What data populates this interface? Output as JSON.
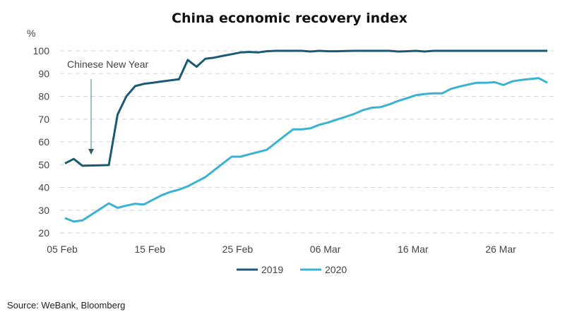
{
  "chart_data": {
    "type": "line",
    "title": "China economic recovery index",
    "ylabel": "%",
    "xlabel": "",
    "ylim": [
      20,
      100
    ],
    "yticks": [
      20,
      30,
      40,
      50,
      60,
      70,
      80,
      90,
      100
    ],
    "x_unit": "days since 05 Feb",
    "x_start_label": "05 Feb",
    "xlim": [
      0,
      55
    ],
    "xticks": [
      {
        "day": 0,
        "label": "05 Feb"
      },
      {
        "day": 10,
        "label": "15 Feb"
      },
      {
        "day": 20,
        "label": "25 Feb"
      },
      {
        "day": 30,
        "label": "06 Mar"
      },
      {
        "day": 40,
        "label": "16 Mar"
      },
      {
        "day": 50,
        "label": "26 Mar"
      }
    ],
    "grid": "horizontal dashed",
    "legend_position": "bottom",
    "annotation": {
      "text": "Chinese New Year",
      "day": 3,
      "value": 50
    },
    "series": [
      {
        "name": "2019",
        "color": "#1a5a74",
        "values": [
          50.5,
          52.5,
          49.5,
          49.6,
          49.7,
          49.8,
          72,
          80,
          84.5,
          85.5,
          86,
          86.5,
          87,
          87.5,
          96,
          93,
          96.5,
          97,
          97.8,
          98.5,
          99.3,
          99.5,
          99.3,
          99.8,
          100,
          100,
          100,
          100,
          99.7,
          100,
          99.8,
          99.8,
          99.9,
          100,
          100,
          100,
          100,
          100,
          99.7,
          99.8,
          100,
          99.7,
          100,
          100,
          100,
          100,
          100,
          100,
          100,
          100,
          100,
          100,
          100,
          100,
          100,
          100
        ]
      },
      {
        "name": "2020",
        "color": "#3ab3d3",
        "values": [
          26.5,
          25,
          25.5,
          28,
          30.5,
          33,
          31,
          32,
          32.8,
          32.5,
          34.5,
          36.5,
          38,
          39,
          40.5,
          42.5,
          44.5,
          47.5,
          50.5,
          53.5,
          53.5,
          54.5,
          55.5,
          56.5,
          59.5,
          62.5,
          65.5,
          65.5,
          66,
          67.5,
          68.5,
          69.8,
          71,
          72.3,
          74,
          75,
          75.3,
          76.5,
          78,
          79.2,
          80.5,
          81,
          81.3,
          81.3,
          83.3,
          84.3,
          85.2,
          86,
          86,
          86.2,
          85,
          86.6,
          87.2,
          87.6,
          88,
          86
        ]
      }
    ]
  },
  "source": "Source: WeBank, Bloomberg"
}
